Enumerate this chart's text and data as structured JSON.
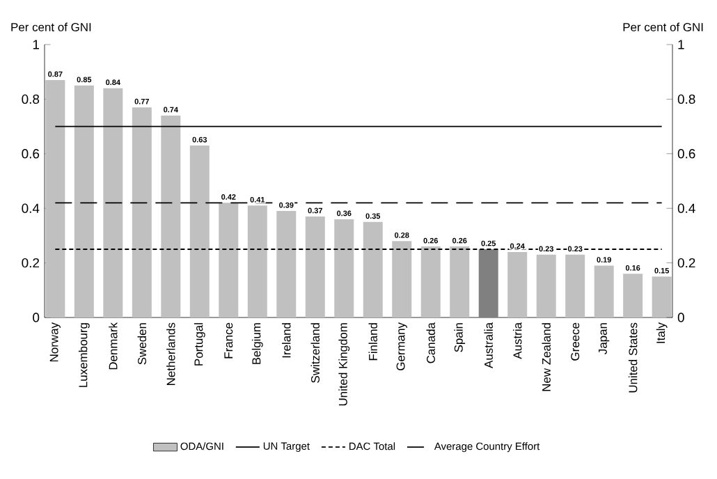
{
  "chart_data": {
    "type": "bar",
    "categories": [
      "Norway",
      "Luxembourg",
      "Denmark",
      "Sweden",
      "Netherlands",
      "Portugal",
      "France",
      "Belgium",
      "Ireland",
      "Switzerland",
      "United Kingdom",
      "Finland",
      "Germany",
      "Canada",
      "Spain",
      "Australia",
      "Austria",
      "New Zealand",
      "Greece",
      "Japan",
      "United States",
      "Italy"
    ],
    "series": [
      {
        "name": "ODA/GNI",
        "values": [
          0.87,
          0.85,
          0.84,
          0.77,
          0.74,
          0.63,
          0.42,
          0.41,
          0.39,
          0.37,
          0.36,
          0.35,
          0.28,
          0.26,
          0.26,
          0.25,
          0.24,
          0.23,
          0.23,
          0.19,
          0.16,
          0.15
        ],
        "colors": [
          "#c0c0c0",
          "#c0c0c0",
          "#c0c0c0",
          "#c0c0c0",
          "#c0c0c0",
          "#c0c0c0",
          "#c0c0c0",
          "#c0c0c0",
          "#c0c0c0",
          "#c0c0c0",
          "#c0c0c0",
          "#c0c0c0",
          "#c0c0c0",
          "#c0c0c0",
          "#c0c0c0",
          "#808080",
          "#c0c0c0",
          "#c0c0c0",
          "#c0c0c0",
          "#c0c0c0",
          "#c0c0c0",
          "#c0c0c0"
        ]
      }
    ],
    "ylabel": "Per cent of GNI",
    "y2label": "Per cent of GNI",
    "ylim": [
      0,
      1
    ],
    "yticks": [
      0,
      0.2,
      0.4,
      0.6,
      0.8,
      1
    ],
    "y2lim": [
      0,
      1
    ],
    "y2ticks": [
      0,
      0.2,
      0.4,
      0.6,
      0.8,
      1
    ],
    "ref_lines": [
      {
        "axis": "y",
        "value": 0.7,
        "label": "UN Target",
        "color": "#000000",
        "line_style": "solid"
      },
      {
        "axis": "y",
        "value": 0.25,
        "label": "DAC Total",
        "color": "#000000",
        "line_style": "dotted"
      },
      {
        "axis": "y",
        "value": 0.42,
        "label": "Average Country Effort",
        "color": "#000000",
        "line_style": "dashed"
      }
    ],
    "data_labels": true,
    "grid": false,
    "legend": "bottom"
  }
}
